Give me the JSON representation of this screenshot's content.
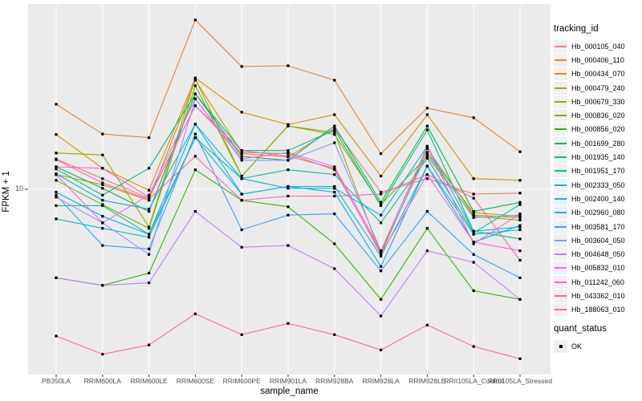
{
  "chart_data": {
    "type": "line",
    "title": "",
    "xlabel": "sample_name",
    "ylabel": "FPKM + 1",
    "y_scale": "log10",
    "y_tick_labels": [
      "10"
    ],
    "ylim_approx": [
      1.4,
      71
    ],
    "grid": "major-white-on-grey",
    "panel_bg": "#EBEBEB",
    "gridline_color": "#FFFFFF",
    "point_color": "#000000",
    "point_shape": "square",
    "legend_position": "right",
    "categories": [
      "PB350LA",
      "RRIM600LA",
      "RRIM600LE",
      "RRIM600SE",
      "RRIM600PE",
      "RRIM901LA",
      "RRIM928BA",
      "RRIM928LA",
      "RRIM928LE",
      "RRII105LA_Control",
      "RRII105LA_Stressed"
    ],
    "legend": {
      "color_title": "tracking_id",
      "shape_title": "quant_status",
      "shape_items": [
        {
          "label": "OK"
        }
      ]
    },
    "series": [
      {
        "name": "Hb_000105_040",
        "color": "#F8766D",
        "values": [
          13.8,
          11.2,
          9.1,
          24.3,
          14.6,
          14.1,
          19.1,
          9.7,
          11.2,
          9.5,
          9.6
        ]
      },
      {
        "name": "Hb_000406_110",
        "color": "#EA8331",
        "values": [
          24.7,
          18.0,
          17.3,
          60.5,
          36.9,
          37.2,
          31.9,
          14.6,
          23.7,
          21.4,
          14.9
        ]
      },
      {
        "name": "Hb_000434_070",
        "color": "#D89000",
        "values": [
          17.9,
          12.5,
          9.9,
          32.7,
          22.7,
          19.9,
          22.1,
          11.5,
          22.1,
          11.2,
          11.0
        ]
      },
      {
        "name": "Hb_000479_240",
        "color": "#C09B00",
        "values": [
          11.7,
          10.5,
          8.9,
          31.9,
          14.8,
          14.6,
          12.3,
          5.1,
          14.8,
          7.8,
          7.5
        ]
      },
      {
        "name": "Hb_000679_330",
        "color": "#A3A500",
        "values": [
          14.7,
          14.4,
          6.7,
          32.4,
          11.5,
          19.6,
          18.3,
          5.0,
          15.4,
          7.6,
          7.4
        ]
      },
      {
        "name": "Hb_000836_020",
        "color": "#7CAE00",
        "values": [
          11.0,
          8.5,
          6.6,
          30.1,
          11.5,
          19.6,
          17.9,
          8.5,
          14.2,
          7.5,
          7.2
        ]
      },
      {
        "name": "Hb_000856_020",
        "color": "#39B600",
        "values": [
          3.9,
          3.6,
          4.1,
          12.3,
          8.9,
          8.3,
          5.6,
          3.1,
          6.6,
          3.4,
          3.1
        ]
      },
      {
        "name": "Hb_001699_280",
        "color": "#00BB4E",
        "values": [
          12.7,
          10.1,
          7.9,
          27.6,
          14.2,
          13.6,
          19.6,
          8.7,
          19.6,
          7.9,
          8.7
        ]
      },
      {
        "name": "Hb_001935_140",
        "color": "#00BF7D",
        "values": [
          12.4,
          9.4,
          12.5,
          27.6,
          15.1,
          15.1,
          18.8,
          8.4,
          18.8,
          6.4,
          5.9
        ]
      },
      {
        "name": "Hb_001951_170",
        "color": "#00C1A3",
        "values": [
          8.4,
          8.4,
          6.2,
          17.3,
          11.2,
          12.3,
          11.7,
          7.0,
          13.9,
          6.3,
          8.5
        ]
      },
      {
        "name": "Hb_002333_050",
        "color": "#00BFC4",
        "values": [
          7.3,
          6.6,
          6.0,
          17.3,
          9.5,
          10.3,
          10.3,
          4.9,
          12.8,
          6.2,
          6.5
        ]
      },
      {
        "name": "Hb_002400_140",
        "color": "#00BAE0",
        "values": [
          11.8,
          8.9,
          8.1,
          20.0,
          11.2,
          10.1,
          10.1,
          7.6,
          15.8,
          6.4,
          6.7
        ]
      },
      {
        "name": "Hb_002960_080",
        "color": "#00B0F6",
        "values": [
          9.7,
          7.5,
          6.2,
          20.0,
          9.5,
          10.3,
          9.7,
          4.4,
          12.8,
          5.7,
          6.8
        ]
      },
      {
        "name": "Hb_003581_170",
        "color": "#35A2FF",
        "values": [
          9.4,
          5.5,
          5.3,
          18.0,
          6.5,
          7.6,
          7.7,
          4.2,
          7.9,
          5.0,
          3.9
        ]
      },
      {
        "name": "Hb_003604_050",
        "color": "#9590FF",
        "values": [
          9.2,
          7.0,
          5.0,
          26.2,
          13.6,
          13.6,
          16.4,
          5.2,
          14.6,
          7.4,
          7.6
        ]
      },
      {
        "name": "Hb_004648_050",
        "color": "#C77CFF",
        "values": [
          3.9,
          3.6,
          3.7,
          7.9,
          5.4,
          5.5,
          4.3,
          2.6,
          5.2,
          4.6,
          3.1
        ]
      },
      {
        "name": "Hb_005832_010",
        "color": "#E76BF3",
        "values": [
          11.7,
          7.0,
          9.4,
          26.2,
          13.8,
          14.8,
          12.7,
          5.2,
          15.8,
          5.6,
          7.7
        ]
      },
      {
        "name": "Hb_011242_060",
        "color": "#FA62DB",
        "values": [
          12.7,
          12.5,
          9.2,
          24.3,
          15.1,
          14.2,
          12.5,
          5.0,
          11.7,
          5.7,
          5.2
        ]
      },
      {
        "name": "Hb_043362_010",
        "color": "#FF62BC",
        "values": [
          13.7,
          10.7,
          9.0,
          14.2,
          8.9,
          9.3,
          9.3,
          9.5,
          11.7,
          9.1,
          4.7
        ]
      },
      {
        "name": "Hb_188063_010",
        "color": "#FF6A98",
        "values": [
          2.1,
          1.73,
          1.91,
          2.66,
          2.13,
          2.4,
          2.13,
          1.81,
          2.36,
          1.88,
          1.65
        ]
      }
    ]
  }
}
